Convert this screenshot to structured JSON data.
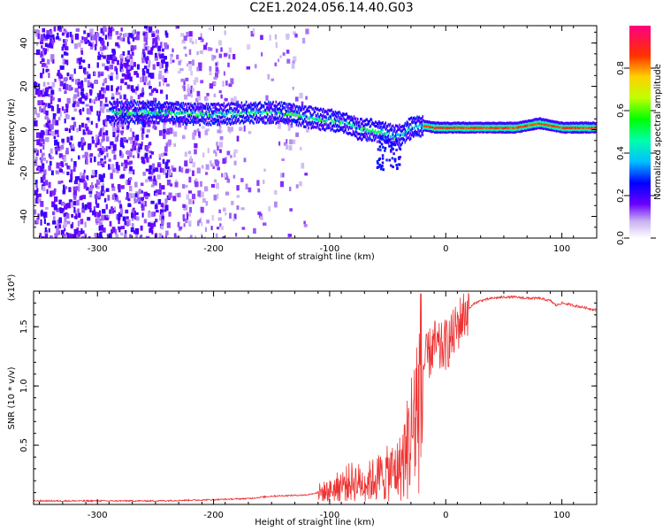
{
  "title": "C2E1.2024.056.14.40.G03",
  "chart_data": [
    {
      "type": "heatmap",
      "xlabel": "Height of straight line (km)",
      "ylabel": "Frequency (Hz)",
      "xlim": [
        -355,
        130
      ],
      "ylim": [
        -50,
        48
      ],
      "xticks": [
        -300,
        -200,
        -100,
        0,
        100
      ],
      "yticks": [
        -40,
        -20,
        0,
        20,
        40
      ],
      "colorbar": {
        "label": "Normalized spectral amplitude",
        "range": [
          0,
          1
        ],
        "ticks": [
          "0.0",
          "0.2",
          "0.4",
          "0.6",
          "0.8"
        ],
        "colormap": "rainbow (white, violet, blue, cyan, green, yellow, orange, red, magenta)"
      },
      "ridge": {
        "x": [
          -290,
          -250,
          -200,
          -170,
          -150,
          -130,
          -110,
          -95,
          -85,
          -75,
          -65,
          -55,
          -45,
          -38,
          -30,
          -20,
          -10,
          0,
          20,
          60,
          80,
          90,
          100,
          130
        ],
        "y": [
          8,
          8,
          7,
          8,
          8,
          7,
          5,
          4,
          3,
          0,
          0,
          -1,
          -3,
          -2,
          1,
          2,
          1,
          1,
          1,
          1,
          3,
          2,
          1,
          1
        ]
      },
      "grid": false
    },
    {
      "type": "line",
      "xlabel": "Height of straight line (km)",
      "ylabel": "SNR (10 * v/v)",
      "y_multiplier": "(x10⁴)",
      "xlim": [
        -355,
        130
      ],
      "ylim": [
        0,
        1.8
      ],
      "xticks": [
        -300,
        -200,
        -100,
        0,
        100
      ],
      "yticks": [
        "0.5",
        "1.0",
        "1.5"
      ],
      "series_color": "#ee3333",
      "x": [
        -355,
        -300,
        -250,
        -200,
        -170,
        -150,
        -120,
        -100,
        -90,
        -80,
        -70,
        -60,
        -50,
        -40,
        -35,
        -30,
        -25,
        -22,
        -20,
        -15,
        -10,
        -5,
        0,
        5,
        10,
        15,
        20,
        25,
        30,
        40,
        50,
        60,
        70,
        80,
        90,
        95,
        100,
        110,
        120,
        130
      ],
      "y": [
        0.03,
        0.03,
        0.03,
        0.04,
        0.05,
        0.07,
        0.08,
        0.12,
        0.18,
        0.22,
        0.2,
        0.25,
        0.3,
        0.35,
        0.5,
        0.7,
        1.0,
        1.2,
        1.15,
        1.25,
        1.35,
        1.3,
        1.35,
        1.4,
        1.5,
        1.6,
        1.65,
        1.7,
        1.72,
        1.74,
        1.75,
        1.75,
        1.74,
        1.74,
        1.72,
        1.68,
        1.7,
        1.68,
        1.66,
        1.64
      ]
    }
  ]
}
